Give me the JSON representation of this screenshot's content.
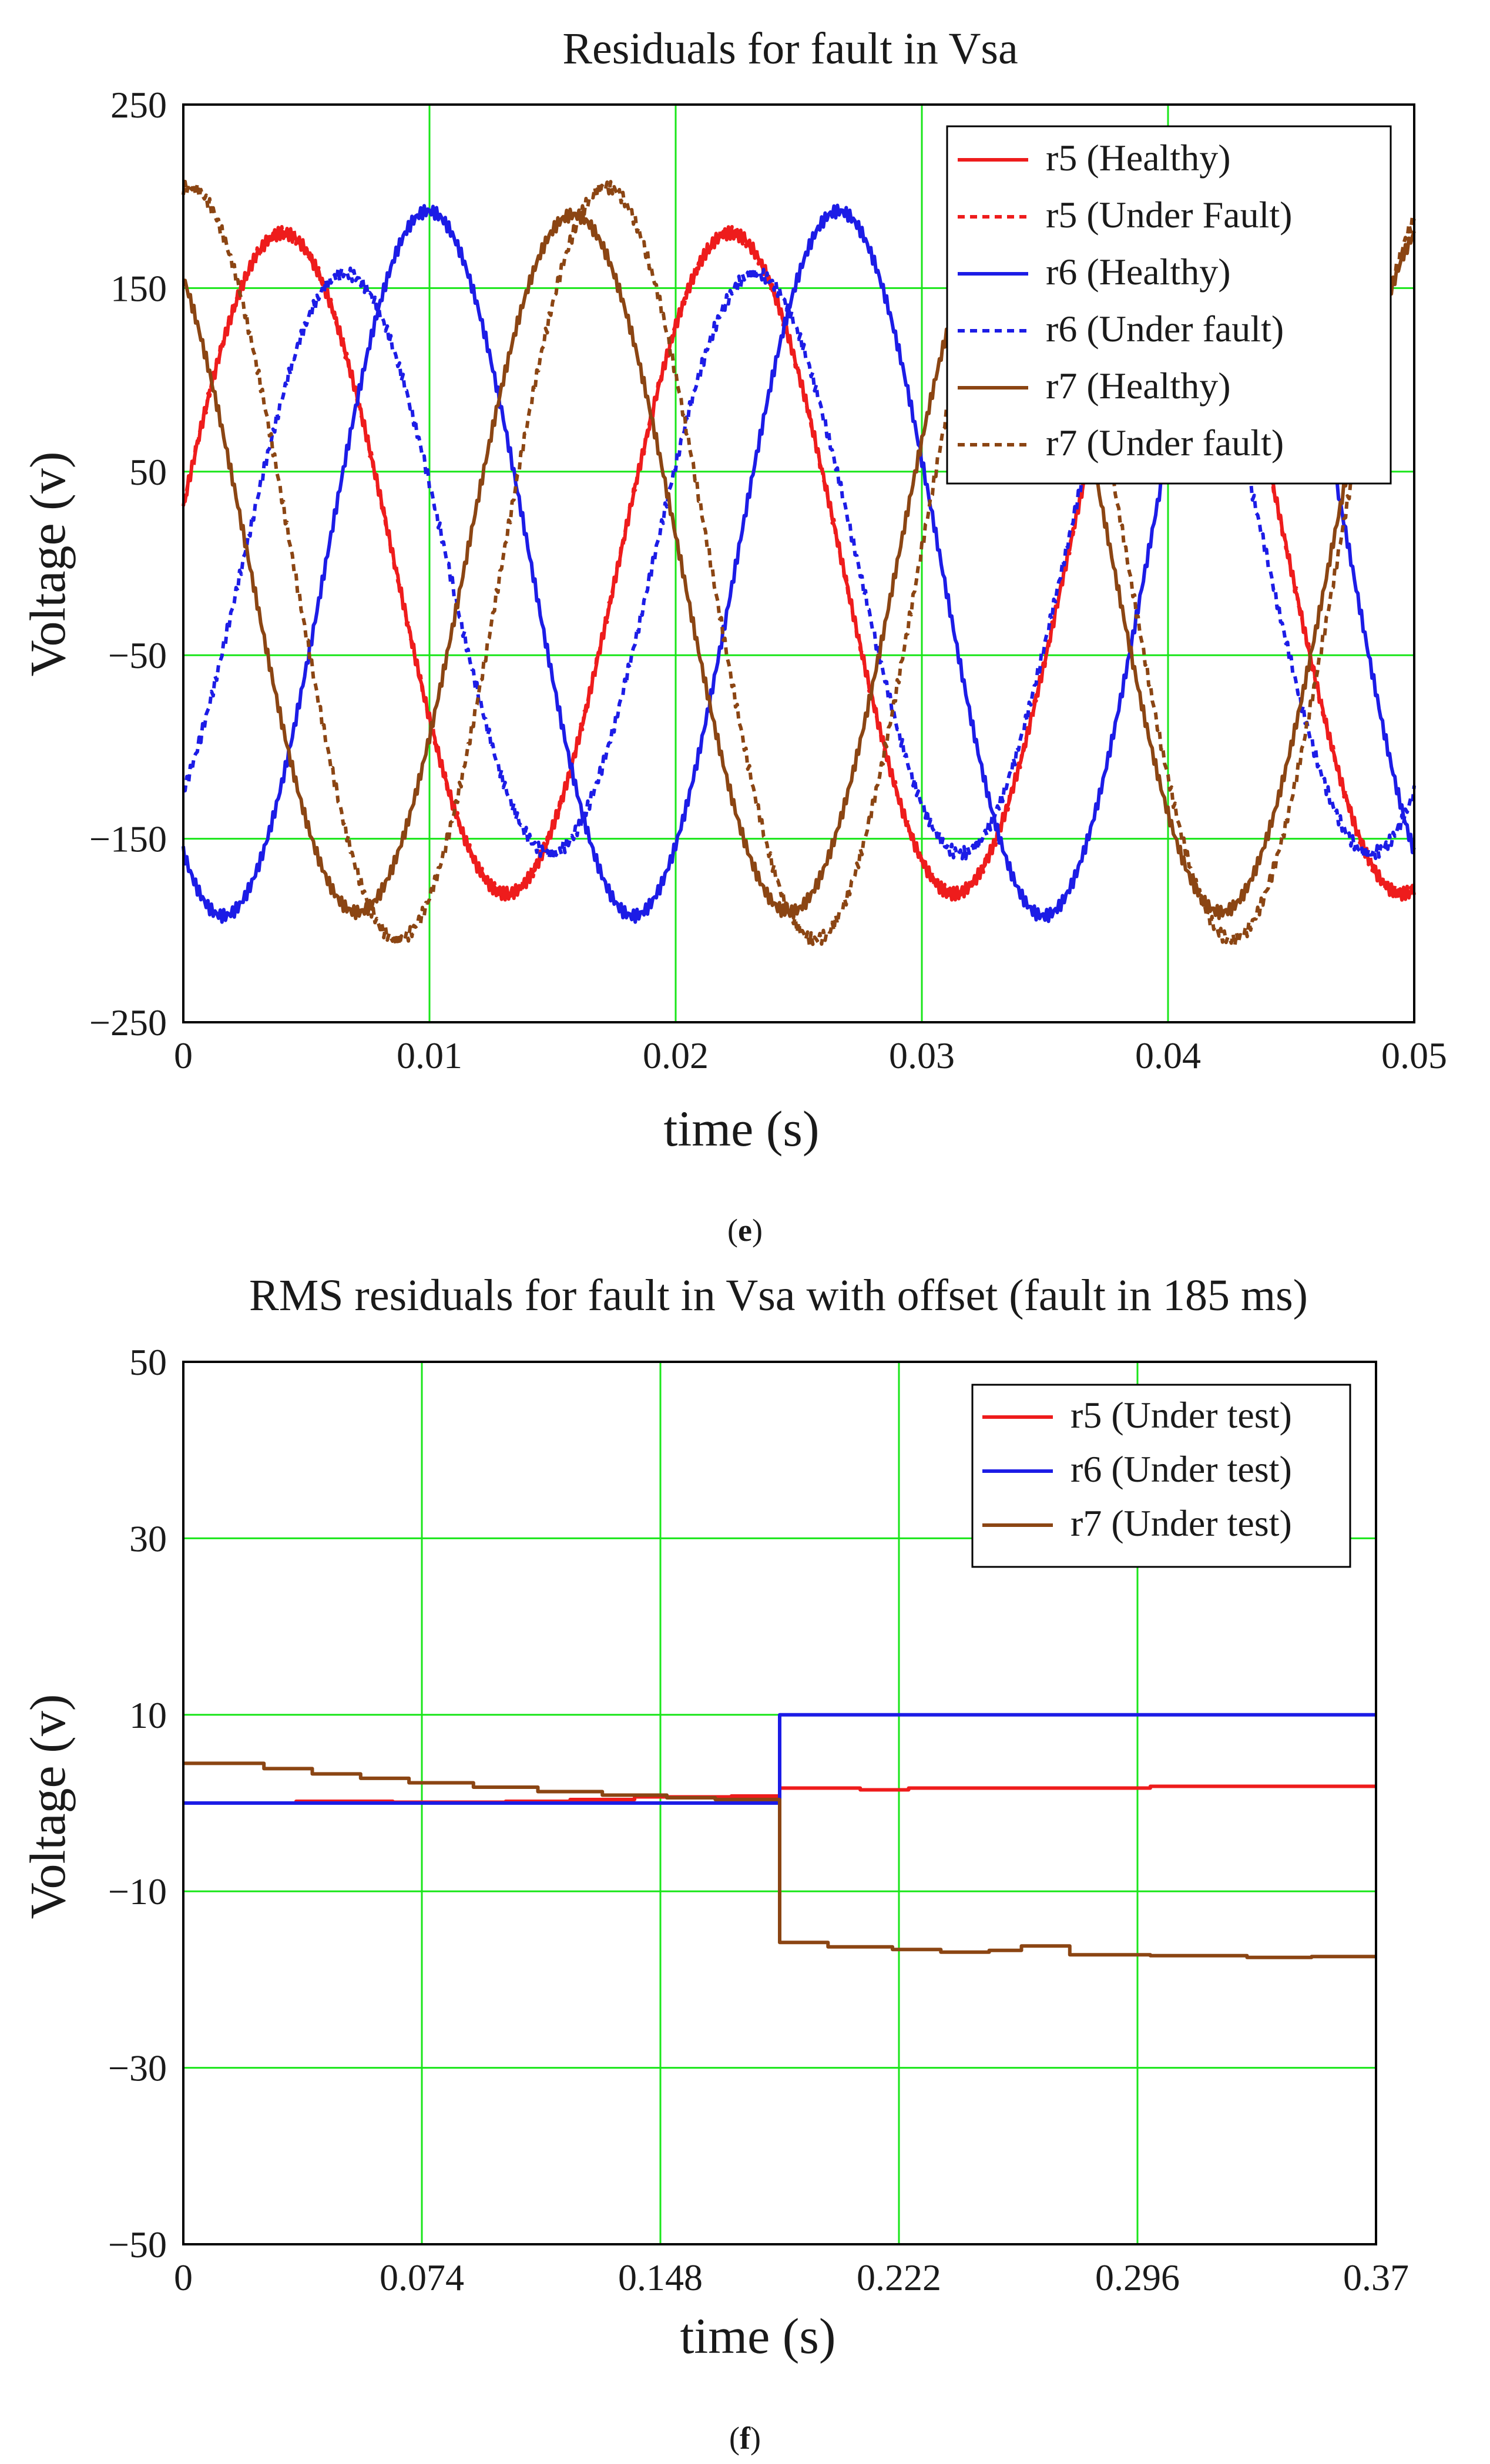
{
  "figure": {
    "captions": [
      "(e)",
      "(f)"
    ],
    "caption_letters": [
      "e",
      "f"
    ]
  },
  "colors": {
    "grid": "#19e619",
    "r5": "#ee1c1c",
    "r6": "#1c1ce6",
    "r7": "#8b4513",
    "axes": "#000000"
  },
  "chart_data": [
    {
      "type": "line",
      "title": "Residuals for fault in Vsa",
      "xlabel": "time (s)",
      "ylabel": "Voltage (v)",
      "xlim": [
        0,
        0.05
      ],
      "ylim": [
        -250,
        250
      ],
      "x_ticks": [
        0,
        0.01,
        0.02,
        0.03,
        0.04,
        0.05
      ],
      "x_tick_labels": [
        "0",
        "0.01",
        "0.02",
        "0.03",
        "0.04",
        "0.05"
      ],
      "y_ticks": [
        250,
        150,
        50,
        -50,
        -150,
        -250
      ],
      "y_tick_labels": [
        "250",
        "150",
        "50",
        "−50",
        "−150",
        "−250"
      ],
      "grid": true,
      "legend_position": "top-right",
      "series": [
        {
          "name": "r5 (Healthy)",
          "color": "#ee1c1c",
          "style": "solid",
          "waveform": "sine",
          "amplitude": 180,
          "frequency_hz": 55,
          "phase_deg": 10,
          "offset": 0
        },
        {
          "name": "r5 (Under Fault)",
          "color": "#ee1c1c",
          "style": "dotted",
          "waveform": "sine",
          "amplitude": 180,
          "frequency_hz": 55,
          "phase_deg": 10,
          "offset": 0
        },
        {
          "name": "r6 (Healthy)",
          "color": "#1c1ce6",
          "style": "solid",
          "waveform": "sine",
          "amplitude": 192,
          "frequency_hz": 60,
          "phase_deg": -125,
          "offset": 0
        },
        {
          "name": "r6 (Under fault)",
          "color": "#1c1ce6",
          "style": "dotted",
          "waveform": "sine",
          "amplitude": 158,
          "frequency_hz": 60,
          "phase_deg": -52,
          "offset": 0
        },
        {
          "name": "r7 (Healthy)",
          "color": "#8b4513",
          "style": "solid",
          "waveform": "sine",
          "amplitude": 190,
          "frequency_hz": 57,
          "phase_deg": 125,
          "offset": 0
        },
        {
          "name": "r7 (Under fault)",
          "color": "#8b4513",
          "style": "dotted",
          "waveform": "sine",
          "amplitude": 205,
          "frequency_hz": 59,
          "phase_deg": 85,
          "offset": 0
        }
      ]
    },
    {
      "type": "line",
      "title": "RMS residuals for fault in Vsa with offset (fault in 185 ms)",
      "xlabel": "time (s)",
      "ylabel": "Voltage (v)",
      "xlim": [
        0,
        0.37
      ],
      "ylim": [
        -50,
        50
      ],
      "x_ticks": [
        0,
        0.074,
        0.148,
        0.222,
        0.296,
        0.37
      ],
      "x_tick_labels": [
        "0",
        "0.074",
        "0.148",
        "0.222",
        "0.296",
        "0.37"
      ],
      "y_ticks": [
        50,
        30,
        10,
        -10,
        -30,
        -50
      ],
      "y_tick_labels": [
        "50",
        "30",
        "10",
        "−10",
        "−30",
        "−50"
      ],
      "grid": true,
      "legend_position": "top-right",
      "series": [
        {
          "name": "r5 (Under test)",
          "color": "#ee1c1c",
          "style": "step",
          "x": [
            0,
            0.035,
            0.065,
            0.1,
            0.12,
            0.14,
            0.17,
            0.185,
            0.21,
            0.225,
            0.3,
            0.37
          ],
          "y": [
            0,
            0.2,
            0.1,
            0.2,
            0.4,
            0.7,
            0.8,
            1.7,
            1.5,
            1.7,
            1.9,
            1.9
          ]
        },
        {
          "name": "r6 (Under test)",
          "color": "#1c1ce6",
          "style": "step",
          "x": [
            0,
            0.184,
            0.185,
            0.37
          ],
          "y": [
            0,
            0,
            10,
            10
          ]
        },
        {
          "name": "r7 (Under test)",
          "color": "#8b4513",
          "style": "step",
          "x": [
            0,
            0.01,
            0.025,
            0.04,
            0.055,
            0.07,
            0.09,
            0.11,
            0.13,
            0.15,
            0.165,
            0.185,
            0.2,
            0.22,
            0.235,
            0.25,
            0.26,
            0.275,
            0.3,
            0.33,
            0.35,
            0.37
          ],
          "y": [
            4.5,
            4.5,
            3.9,
            3.3,
            2.8,
            2.3,
            1.8,
            1.3,
            0.9,
            0.6,
            0.4,
            -15.8,
            -16.3,
            -16.6,
            -16.9,
            -16.7,
            -16.2,
            -17.2,
            -17.3,
            -17.5,
            -17.4,
            -17.4
          ]
        }
      ]
    }
  ]
}
